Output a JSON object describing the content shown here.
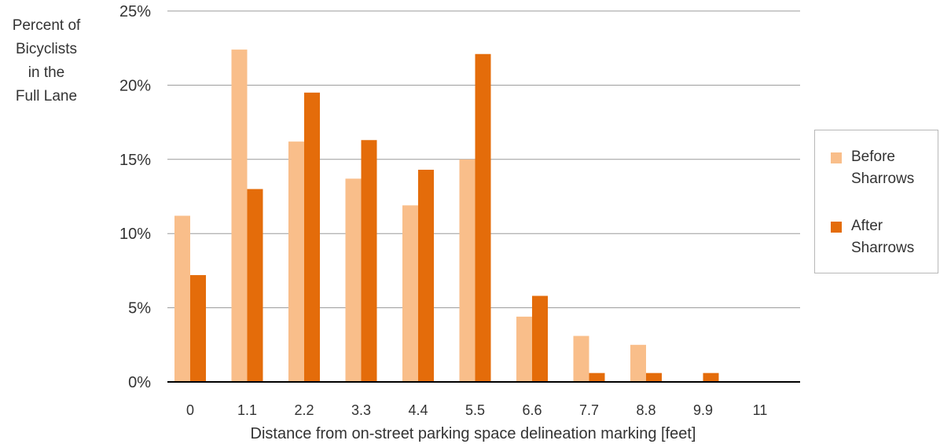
{
  "chart_data": {
    "type": "bar",
    "ylabel_lines": [
      "Percent of",
      "Bicyclists",
      "in the",
      "Full Lane"
    ],
    "xlabel": "Distance from on-street parking space delineation marking [feet]",
    "categories": [
      "0",
      "1.1",
      "2.2",
      "3.3",
      "4.4",
      "5.5",
      "6.6",
      "7.7",
      "8.8",
      "9.9",
      "11"
    ],
    "ylim": [
      0,
      25
    ],
    "yticks": [
      "0%",
      "5%",
      "10%",
      "15%",
      "20%",
      "25%"
    ],
    "grid": true,
    "legend_position": "right",
    "series": [
      {
        "name": "Before Sharrows",
        "color": "#f9be8a",
        "values": [
          11.2,
          22.4,
          16.2,
          13.7,
          11.9,
          15.0,
          4.4,
          3.1,
          2.5,
          0,
          0
        ]
      },
      {
        "name": "After Sharrows",
        "color": "#e46c0a",
        "values": [
          7.2,
          13.0,
          19.5,
          16.3,
          14.3,
          22.1,
          5.8,
          0.6,
          0.6,
          0.6,
          0
        ]
      }
    ]
  },
  "legend": {
    "before_label": "Before\nSharrows",
    "after_label": "After\nSharrows"
  }
}
